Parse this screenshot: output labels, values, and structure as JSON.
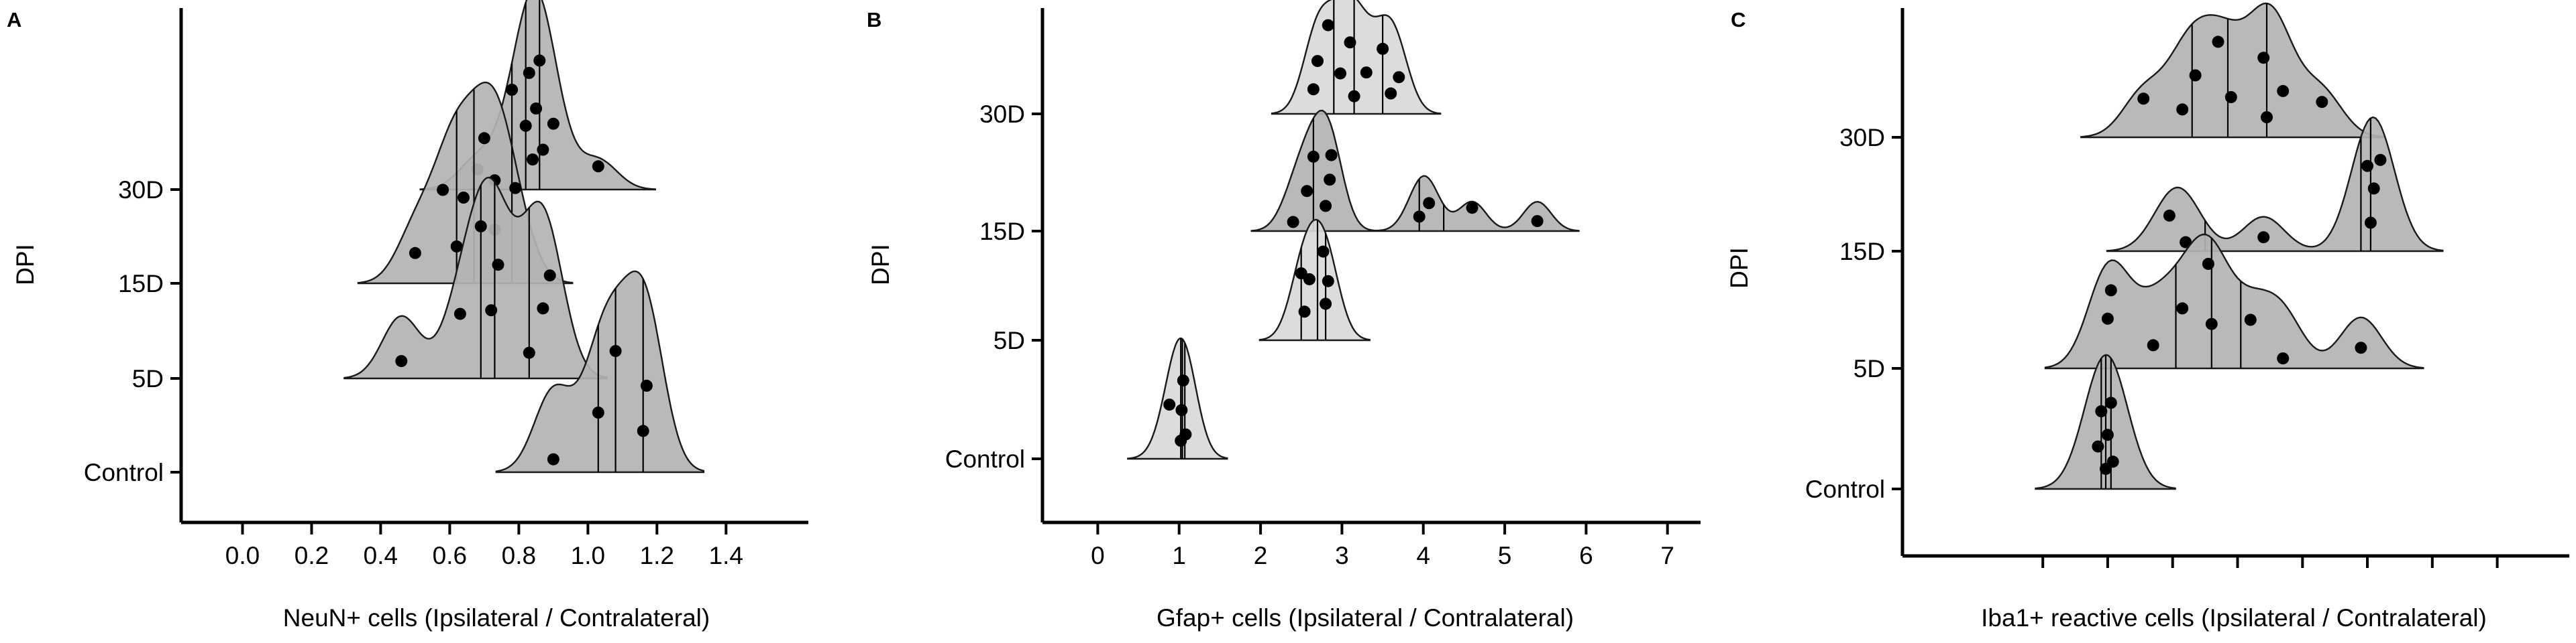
{
  "figure": {
    "colors": {
      "ridge_fill": "#b3b3b3",
      "ridge_fill_light": "#d9d9d9",
      "point": "#000000",
      "point_faded": "#777777",
      "axis": "#000000"
    },
    "panels": [
      {
        "letter": "A",
        "chart_index": 0
      },
      {
        "letter": "B",
        "chart_index": 1
      },
      {
        "letter": "C",
        "chart_index": 2
      }
    ]
  },
  "chart_data": [
    {
      "type": "ridgeline",
      "panel": "A",
      "xlabel": "NeuN+ cells (Ipsilateral / Contralateral)",
      "ylabel": "DPI",
      "xlim": [
        -0.1,
        1.58
      ],
      "xticks": [
        "0.0",
        "0.2",
        "0.4",
        "0.6",
        "0.8",
        "1.0",
        "1.2",
        "1.4"
      ],
      "xtick_values": [
        0.0,
        0.2,
        0.4,
        0.6,
        0.8,
        1.0,
        1.2,
        1.4
      ],
      "categories": [
        "Control",
        "5D",
        "15D",
        "30D"
      ],
      "series": [
        {
          "category": "Control",
          "quartiles": [
            1.03,
            1.08,
            1.16
          ],
          "points": [
            0.9,
            1.03,
            1.08,
            1.16,
            1.17
          ]
        },
        {
          "category": "5D",
          "quartiles": [
            0.69,
            0.73,
            0.83
          ],
          "points": [
            0.46,
            0.63,
            0.69,
            0.72,
            0.74,
            0.83,
            0.87,
            0.89
          ]
        },
        {
          "category": "15D",
          "quartiles": [
            0.62,
            0.67,
            0.78
          ],
          "points": [
            0.5,
            0.58,
            0.62,
            0.64,
            0.7,
            0.73,
            0.73,
            0.79
          ]
        },
        {
          "category": "30D",
          "quartiles": [
            0.78,
            0.82,
            0.86
          ],
          "points": [
            0.68,
            0.78,
            0.82,
            0.83,
            0.84,
            0.85,
            0.86,
            0.87,
            0.9,
            1.03
          ]
        }
      ]
    },
    {
      "type": "ridgeline",
      "panel": "B",
      "xlabel": "Gfap+ cells (Ipsilateral / Contralateral)",
      "ylabel": "DPI",
      "xlim": [
        -0.3,
        7.2
      ],
      "xticks": [
        "0",
        "1",
        "2",
        "3",
        "4",
        "5",
        "6",
        "7"
      ],
      "xtick_values": [
        0,
        1,
        2,
        3,
        4,
        5,
        6,
        7
      ],
      "categories": [
        "Control",
        "5D",
        "15D",
        "30D"
      ],
      "series": [
        {
          "category": "Control",
          "quartiles": [
            1.02,
            1.04,
            1.07
          ],
          "points": [
            0.88,
            1.02,
            1.03,
            1.05,
            1.08
          ]
        },
        {
          "category": "5D",
          "quartiles": [
            2.5,
            2.7,
            2.8
          ],
          "points": [
            2.5,
            2.54,
            2.6,
            2.77,
            2.8,
            2.83
          ]
        },
        {
          "category": "15D",
          "quartiles": [
            2.65,
            3.95,
            4.25
          ],
          "points": [
            2.4,
            2.57,
            2.65,
            2.8,
            2.85,
            2.87,
            3.95,
            4.07,
            4.6,
            5.4
          ]
        },
        {
          "category": "30D",
          "quartiles": [
            2.9,
            3.15,
            3.5
          ],
          "points": [
            2.65,
            2.7,
            2.83,
            2.98,
            3.1,
            3.15,
            3.3,
            3.5,
            3.6,
            3.7
          ]
        }
      ]
    },
    {
      "type": "ridgeline",
      "panel": "C",
      "xlabel": "Iba1+ reactive cells (Ipsilateral / Contralateral)",
      "ylabel": "DPI",
      "xlim": [
        -0.5,
        8.8
      ],
      "xticks": [
        "",
        "",
        "",
        "",
        "",
        "",
        "",
        ""
      ],
      "xtick_values": [
        1,
        2,
        3,
        4,
        5,
        6,
        7,
        8
      ],
      "categories": [
        "Control",
        "5D",
        "15D",
        "30D"
      ],
      "series": [
        {
          "category": "Control",
          "quartiles": [
            1.9,
            1.97,
            2.05
          ],
          "points": [
            1.85,
            1.9,
            1.97,
            2.0,
            2.05,
            2.08
          ]
        },
        {
          "category": "5D",
          "quartiles": [
            3.05,
            3.6,
            4.05
          ],
          "points": [
            2.0,
            2.05,
            2.7,
            3.15,
            3.55,
            3.6,
            4.2,
            4.7,
            5.9
          ]
        },
        {
          "category": "15D",
          "quartiles": [
            3.5,
            5.9,
            6.05
          ],
          "points": [
            2.95,
            3.2,
            4.4,
            6.0,
            6.05,
            6.1,
            6.2
          ]
        },
        {
          "category": "30D",
          "quartiles": [
            3.3,
            3.85,
            4.45
          ],
          "points": [
            2.55,
            3.15,
            3.35,
            3.7,
            3.9,
            4.4,
            4.45,
            4.7,
            5.3
          ]
        }
      ]
    }
  ]
}
